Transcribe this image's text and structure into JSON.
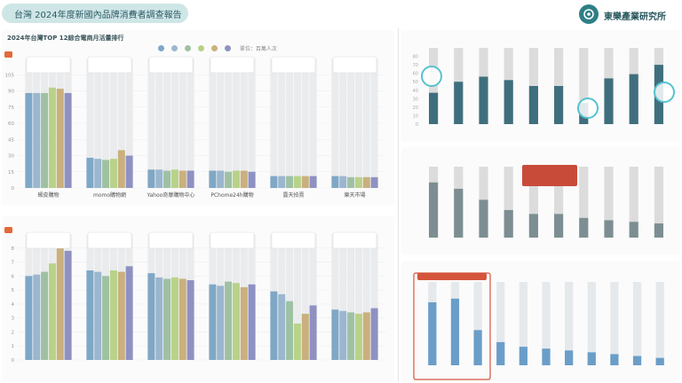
{
  "header": {
    "title": "台灣 2024年度新國內品牌消費者調查報告",
    "brand": "東樂產業研究所",
    "colors": {
      "pill": "#cfe6e7",
      "accent": "#2f7f86",
      "badge": "#e26a3a"
    }
  },
  "left_top": {
    "title": "2024年台灣TOP 12綜合電商月活量排行",
    "unit": "單位：百萬人次"
  },
  "left_bottom": {
    "title": "",
    "unit": ""
  },
  "right_top": {
    "title": "",
    "legend": [
      "",
      ""
    ]
  },
  "right_mid": {
    "title": "",
    "legend": [
      "",
      ""
    ],
    "callout": ""
  },
  "right_bot": {
    "title": "",
    "legend": [
      "",
      ""
    ],
    "callout": ""
  },
  "chart_data": [
    {
      "type": "bar",
      "title": "2024年台灣TOP 12綜合電商月活量排行",
      "ylabel": "",
      "ylim": [
        0,
        120
      ],
      "yticks": [
        0,
        15,
        30,
        45,
        60,
        75,
        90,
        105
      ],
      "series_names": [
        "",
        "",
        "",
        "",
        "",
        ""
      ],
      "colors": [
        "#7fa7c6",
        "#9bb6cf",
        "#9fc1a3",
        "#b8d289",
        "#c9b07d",
        "#8f91c2"
      ],
      "categories": [
        "蝦皮購物",
        "momo購物網",
        "Yahoo奇摩購物中心",
        "PChome24h購物",
        "露天拍賣",
        "樂天市場"
      ],
      "values": [
        [
          88,
          88,
          88,
          93,
          92,
          88
        ],
        [
          28,
          27,
          26,
          27,
          35,
          30
        ],
        [
          17,
          17,
          16,
          17,
          16,
          16
        ],
        [
          16,
          16,
          15,
          16,
          16,
          15
        ],
        [
          11,
          11,
          11,
          11,
          11,
          11
        ],
        [
          11,
          11,
          10,
          10,
          10,
          10
        ]
      ],
      "badges": [
        "",
        "",
        "",
        "",
        "",
        ""
      ]
    },
    {
      "type": "bar",
      "title": "",
      "ylim": [
        0,
        9
      ],
      "yticks": [
        0,
        1,
        2,
        3,
        4,
        5,
        6,
        7,
        8
      ],
      "series_names": [
        "",
        "",
        "",
        "",
        "",
        ""
      ],
      "colors": [
        "#7fa7c6",
        "#9bb6cf",
        "#9fc1a3",
        "#b8d289",
        "#c9b07d",
        "#8f91c2"
      ],
      "categories": [
        "",
        "",
        "",
        "",
        "",
        ""
      ],
      "values": [
        [
          6.0,
          6.1,
          6.3,
          6.9,
          8.2,
          7.8
        ],
        [
          6.4,
          6.3,
          6.0,
          6.4,
          6.3,
          6.7
        ],
        [
          6.2,
          5.9,
          5.8,
          5.9,
          5.8,
          5.7
        ],
        [
          5.4,
          5.3,
          5.6,
          5.5,
          5.2,
          5.4
        ],
        [
          4.9,
          4.7,
          4.2,
          2.6,
          3.3,
          3.9
        ],
        [
          3.6,
          3.5,
          3.4,
          3.3,
          3.4,
          3.7
        ]
      ],
      "badges": [
        "",
        "",
        "",
        "",
        "",
        ""
      ]
    },
    {
      "type": "bar",
      "title": "",
      "ylim": [
        0,
        90
      ],
      "yticks": [
        0,
        10,
        20,
        30,
        40,
        50,
        60,
        70,
        80
      ],
      "series_names": [
        "",
        ""
      ],
      "colors": [
        "#dcdcdc",
        "#3f6f7d"
      ],
      "categories": [
        "",
        "",
        "",
        "",
        "",
        "",
        "",
        "",
        "",
        ""
      ],
      "values": [
        [
          90,
          37
        ],
        [
          90,
          50
        ],
        [
          90,
          56
        ],
        [
          90,
          52
        ],
        [
          90,
          45
        ],
        [
          90,
          45
        ],
        [
          90,
          25
        ],
        [
          90,
          54
        ],
        [
          90,
          59
        ],
        [
          90,
          70
        ]
      ],
      "badges": [
        "",
        "",
        "",
        "",
        "",
        "",
        "",
        "",
        "",
        ""
      ]
    },
    {
      "type": "bar",
      "title": "",
      "ylim": [
        0,
        90
      ],
      "yticks": [],
      "series_names": [
        "",
        ""
      ],
      "colors": [
        "#dcdcdc",
        "#7d8e92"
      ],
      "categories": [
        "",
        "",
        "",
        "",
        "",
        "",
        "",
        "",
        "",
        ""
      ],
      "values": [
        [
          90,
          70
        ],
        [
          90,
          62
        ],
        [
          90,
          48
        ],
        [
          90,
          35
        ],
        [
          90,
          30
        ],
        [
          90,
          30
        ],
        [
          90,
          25
        ],
        [
          90,
          22
        ],
        [
          90,
          20
        ],
        [
          90,
          18
        ]
      ],
      "badges": [
        "",
        "",
        "",
        "",
        "",
        "",
        "",
        "",
        "",
        ""
      ]
    },
    {
      "type": "bar",
      "title": "",
      "ylim": [
        0,
        90
      ],
      "yticks": [],
      "series_names": [
        "",
        ""
      ],
      "colors": [
        "#e6e9ec",
        "#6a9ec9"
      ],
      "categories": [
        "",
        "",
        "",
        "",
        "",
        "",
        "",
        "",
        "",
        "",
        ""
      ],
      "values": [
        [
          90,
          68
        ],
        [
          90,
          72
        ],
        [
          90,
          38
        ],
        [
          90,
          25
        ],
        [
          90,
          20
        ],
        [
          90,
          18
        ],
        [
          90,
          16
        ],
        [
          90,
          14
        ],
        [
          90,
          12
        ],
        [
          90,
          10
        ],
        [
          90,
          8
        ]
      ],
      "badges": [
        "",
        "",
        "",
        "",
        "",
        "",
        "",
        "",
        "",
        "",
        ""
      ]
    }
  ]
}
